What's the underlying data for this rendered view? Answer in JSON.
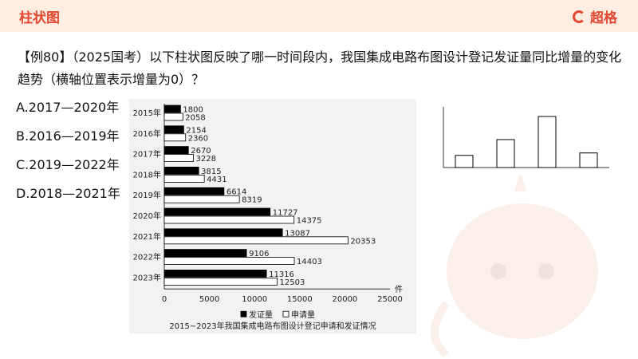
{
  "header": {
    "title": "柱状图",
    "brand": "超格"
  },
  "question": {
    "text": "【例80】（2025国考）以下柱状图反映了哪一时间段内，我国集成电路布图设计登记发证量同比增量的变化趋势（横轴位置表示增量为0）？"
  },
  "options": [
    {
      "label": "A.2017—2020年"
    },
    {
      "label": "B.2016—2019年"
    },
    {
      "label": "C.2019—2022年"
    },
    {
      "label": "D.2018—2021年"
    }
  ],
  "colors": {
    "accent": "#e2472f",
    "header_bg": "#fdece2",
    "chart_bg": "#f2f2f2"
  },
  "chart_data": [
    {
      "type": "bar",
      "orientation": "horizontal",
      "title": "2015~2023年我国集成电路布图设计登记申请和发证情况",
      "categories": [
        "2015年",
        "2016年",
        "2017年",
        "2018年",
        "2019年",
        "2020年",
        "2021年",
        "2022年",
        "2023年"
      ],
      "series": [
        {
          "name": "发证量",
          "values": [
            1800,
            2154,
            2670,
            3815,
            6614,
            11727,
            13087,
            9106,
            11316
          ],
          "color": "#000000"
        },
        {
          "name": "申请量",
          "values": [
            2058,
            2360,
            3228,
            4431,
            8319,
            14375,
            20353,
            14403,
            12503
          ],
          "color": "#ffffff"
        }
      ],
      "x_ticks": [
        "0",
        "5000",
        "10000",
        "15000",
        "20000",
        "25000"
      ],
      "x_unit": "件",
      "xlim": [
        0,
        25000
      ],
      "legend_position": "bottom",
      "grid": false
    },
    {
      "type": "bar",
      "categories": [
        "",
        "",
        "",
        ""
      ],
      "values": [
        1,
        2.3,
        4.2,
        1.2
      ],
      "note_values": "relative bar heights of the unlabeled reference chart",
      "grid": false
    }
  ]
}
